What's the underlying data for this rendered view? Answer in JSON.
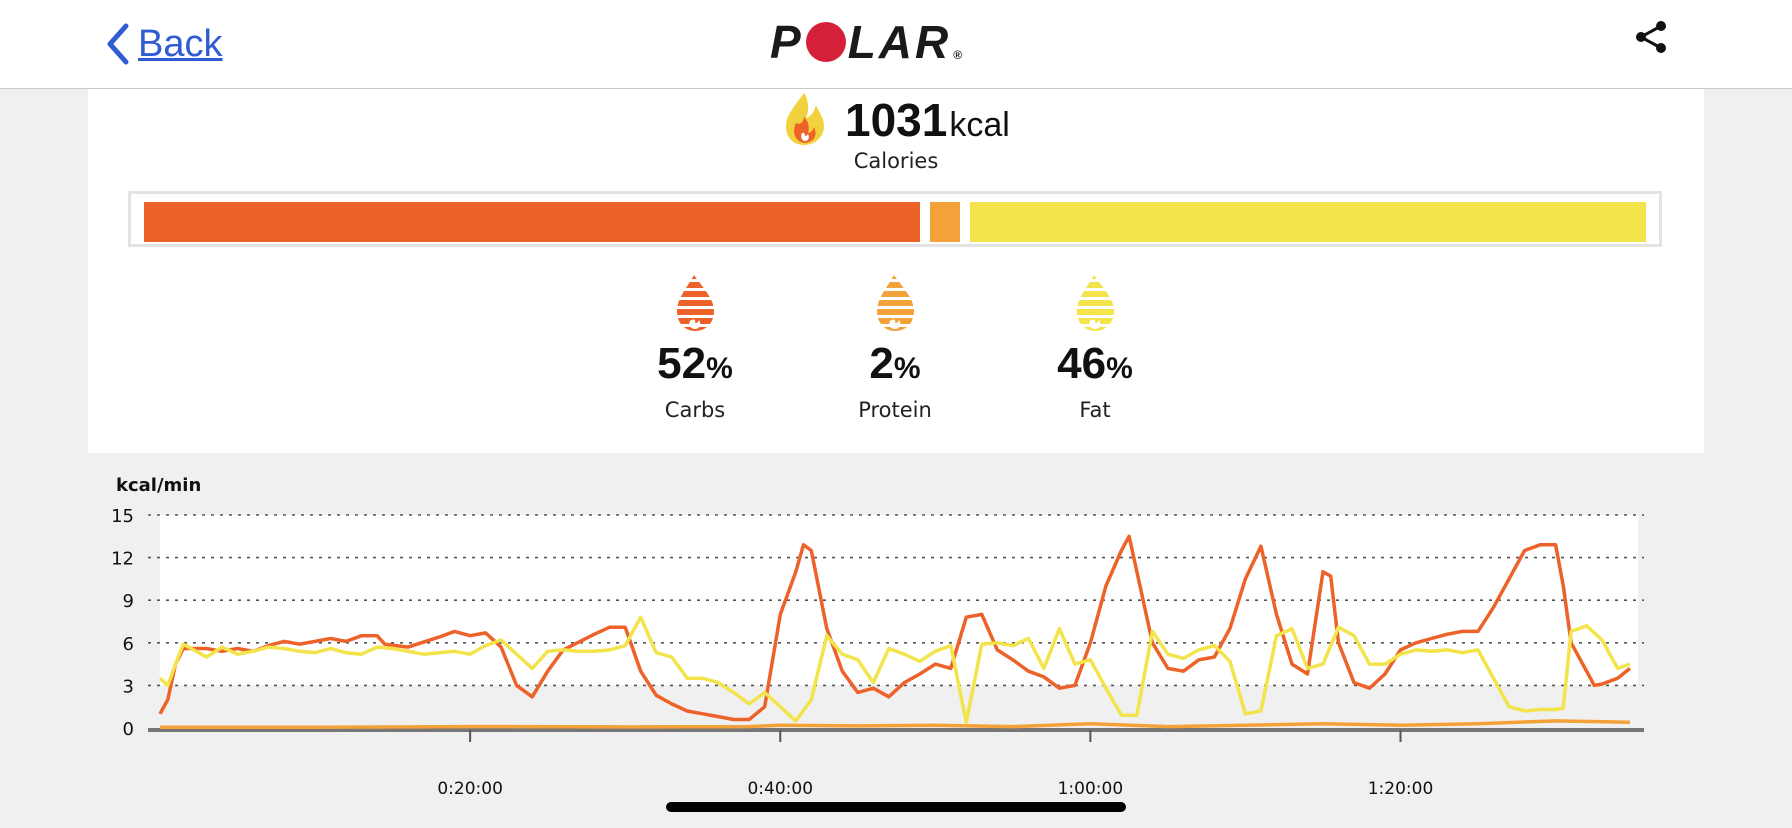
{
  "header": {
    "back_label": "Back",
    "brand": "POLAR",
    "brand_mark": "®",
    "share_icon": "share-icon"
  },
  "calories": {
    "value": "1031",
    "unit": "kcal",
    "label": "Calories"
  },
  "breakdown_bar": {
    "segments": [
      {
        "name": "Carbs",
        "fraction": 0.52,
        "color": "#ed6229"
      },
      {
        "name": "Protein",
        "fraction": 0.02,
        "color": "#f3a23a"
      },
      {
        "name": "Fat",
        "fraction": 0.46,
        "color": "#f2e44a"
      }
    ]
  },
  "macros": [
    {
      "percent": "52",
      "symbol": "%",
      "label": "Carbs",
      "color": "#ed6229"
    },
    {
      "percent": "2",
      "symbol": "%",
      "label": "Protein",
      "color": "#f3a23a"
    },
    {
      "percent": "46",
      "symbol": "%",
      "label": "Fat",
      "color": "#f2e44a"
    }
  ],
  "chart_data": {
    "type": "line",
    "ylabel": "kcal/min",
    "ylim": [
      0,
      15
    ],
    "yticks": [
      "15",
      "12",
      "9",
      "6",
      "3",
      "0"
    ],
    "xticks": [
      {
        "label": "0:20:00",
        "minutes": 20
      },
      {
        "label": "0:40:00",
        "minutes": 40
      },
      {
        "label": "1:00:00",
        "minutes": 60
      },
      {
        "label": "1:20:00",
        "minutes": 80
      }
    ],
    "x_unit": "minutes",
    "xlim": [
      0,
      94.8
    ],
    "grid": "dotted horizontal",
    "series": [
      {
        "color": "#ed6229",
        "points": [
          [
            0,
            1
          ],
          [
            0.5,
            2
          ],
          [
            1,
            4.5
          ],
          [
            1.5,
            5.6
          ],
          [
            3,
            5.6
          ],
          [
            4,
            5.4
          ],
          [
            5,
            5.6
          ],
          [
            6,
            5.4
          ],
          [
            7,
            5.8
          ],
          [
            8,
            6.1
          ],
          [
            9,
            5.9
          ],
          [
            10,
            6.1
          ],
          [
            11,
            6.3
          ],
          [
            12,
            6.1
          ],
          [
            13,
            6.5
          ],
          [
            14,
            6.5
          ],
          [
            14.5,
            5.9
          ],
          [
            16,
            5.7
          ],
          [
            18,
            6.4
          ],
          [
            19,
            6.8
          ],
          [
            20,
            6.5
          ],
          [
            21,
            6.7
          ],
          [
            22,
            5.7
          ],
          [
            23,
            3
          ],
          [
            24,
            2.2
          ],
          [
            25,
            4
          ],
          [
            26,
            5.5
          ],
          [
            28,
            6.6
          ],
          [
            29,
            7.1
          ],
          [
            30,
            7.1
          ],
          [
            31,
            4
          ],
          [
            32,
            2.3
          ],
          [
            33,
            1.7
          ],
          [
            34,
            1.2
          ],
          [
            35,
            1
          ],
          [
            36,
            0.8
          ],
          [
            37,
            0.6
          ],
          [
            38,
            0.6
          ],
          [
            39,
            1.5
          ],
          [
            40,
            8
          ],
          [
            41,
            11
          ],
          [
            41.5,
            12.9
          ],
          [
            42,
            12.5
          ],
          [
            43,
            7
          ],
          [
            44,
            4
          ],
          [
            45,
            2.5
          ],
          [
            46,
            2.8
          ],
          [
            47,
            2.2
          ],
          [
            48,
            3.2
          ],
          [
            49,
            3.8
          ],
          [
            50,
            4.5
          ],
          [
            51,
            4.2
          ],
          [
            52,
            7.8
          ],
          [
            53,
            8
          ],
          [
            54,
            5.5
          ],
          [
            55,
            4.8
          ],
          [
            56,
            4
          ],
          [
            57,
            3.6
          ],
          [
            58,
            2.8
          ],
          [
            59,
            3
          ],
          [
            60,
            6
          ],
          [
            61,
            10
          ],
          [
            62,
            12.5
          ],
          [
            62.5,
            13.5
          ],
          [
            63,
            11
          ],
          [
            64,
            6
          ],
          [
            65,
            4.2
          ],
          [
            66,
            4
          ],
          [
            67,
            4.8
          ],
          [
            68,
            5
          ],
          [
            69,
            7
          ],
          [
            70,
            10.5
          ],
          [
            71,
            12.8
          ],
          [
            72,
            8
          ],
          [
            73,
            4.5
          ],
          [
            74,
            3.8
          ],
          [
            75,
            11
          ],
          [
            75.5,
            10.7
          ],
          [
            76,
            6
          ],
          [
            77,
            3.2
          ],
          [
            78,
            2.8
          ],
          [
            79,
            3.8
          ],
          [
            80,
            5.5
          ],
          [
            81,
            6
          ],
          [
            82,
            6.3
          ],
          [
            83,
            6.6
          ],
          [
            84,
            6.8
          ],
          [
            85,
            6.8
          ],
          [
            86,
            8.5
          ],
          [
            87,
            10.5
          ],
          [
            88,
            12.5
          ],
          [
            89,
            12.9
          ],
          [
            90,
            12.9
          ],
          [
            90.5,
            10
          ],
          [
            91,
            6
          ],
          [
            92,
            4
          ],
          [
            92.5,
            3
          ],
          [
            93,
            3.1
          ],
          [
            94,
            3.5
          ],
          [
            94.8,
            4.2
          ]
        ]
      },
      {
        "color": "#f2e44a",
        "points": [
          [
            0,
            3.5
          ],
          [
            0.5,
            3
          ],
          [
            1,
            4.5
          ],
          [
            1.5,
            5.9
          ],
          [
            3,
            5
          ],
          [
            4,
            5.7
          ],
          [
            5,
            5.2
          ],
          [
            6,
            5.4
          ],
          [
            7,
            5.7
          ],
          [
            8,
            5.6
          ],
          [
            9,
            5.4
          ],
          [
            10,
            5.3
          ],
          [
            11,
            5.6
          ],
          [
            12,
            5.3
          ],
          [
            13,
            5.2
          ],
          [
            14,
            5.7
          ],
          [
            15,
            5.6
          ],
          [
            16,
            5.4
          ],
          [
            17,
            5.2
          ],
          [
            18,
            5.3
          ],
          [
            19,
            5.4
          ],
          [
            20,
            5.2
          ],
          [
            21,
            5.8
          ],
          [
            22,
            6.2
          ],
          [
            23,
            5.2
          ],
          [
            24,
            4.2
          ],
          [
            25,
            5.4
          ],
          [
            26,
            5.5
          ],
          [
            27,
            5.4
          ],
          [
            28,
            5.4
          ],
          [
            29,
            5.5
          ],
          [
            30,
            5.8
          ],
          [
            31,
            7.8
          ],
          [
            32,
            5.3
          ],
          [
            33,
            5
          ],
          [
            34,
            3.5
          ],
          [
            35,
            3.5
          ],
          [
            36,
            3.2
          ],
          [
            37,
            2.5
          ],
          [
            38,
            1.7
          ],
          [
            39,
            2.5
          ],
          [
            40,
            1.5
          ],
          [
            41,
            0.5
          ],
          [
            42,
            2
          ],
          [
            43,
            6.5
          ],
          [
            44,
            5.2
          ],
          [
            45,
            4.8
          ],
          [
            46,
            3.2
          ],
          [
            47,
            5.6
          ],
          [
            48,
            5.2
          ],
          [
            49,
            4.7
          ],
          [
            50,
            5.4
          ],
          [
            51,
            5.8
          ],
          [
            52,
            0.4
          ],
          [
            53,
            5.9
          ],
          [
            54,
            6
          ],
          [
            55,
            5.8
          ],
          [
            56,
            6.3
          ],
          [
            57,
            4.2
          ],
          [
            58,
            7
          ],
          [
            59,
            4.5
          ],
          [
            60,
            4.8
          ],
          [
            61,
            2.8
          ],
          [
            62,
            0.9
          ],
          [
            63,
            0.9
          ],
          [
            64,
            6.8
          ],
          [
            65,
            5.2
          ],
          [
            66,
            4.9
          ],
          [
            67,
            5.5
          ],
          [
            68,
            5.8
          ],
          [
            69,
            4.7
          ],
          [
            70,
            1
          ],
          [
            71,
            1.2
          ],
          [
            72,
            6.5
          ],
          [
            73,
            7
          ],
          [
            74,
            4.2
          ],
          [
            75,
            4.5
          ],
          [
            76,
            7.1
          ],
          [
            77,
            6.5
          ],
          [
            78,
            4.5
          ],
          [
            79,
            4.5
          ],
          [
            80,
            5.2
          ],
          [
            81,
            5.5
          ],
          [
            82,
            5.4
          ],
          [
            83,
            5.5
          ],
          [
            84,
            5.3
          ],
          [
            85,
            5.5
          ],
          [
            86,
            3.5
          ],
          [
            87,
            1.5
          ],
          [
            88,
            1.2
          ],
          [
            89,
            1.3
          ],
          [
            90,
            1.3
          ],
          [
            90.5,
            1.4
          ],
          [
            91,
            6.8
          ],
          [
            92,
            7.2
          ],
          [
            93,
            6.2
          ],
          [
            94,
            4.2
          ],
          [
            94.8,
            4.5
          ]
        ]
      },
      {
        "color": "#f3a23a",
        "points": [
          [
            0,
            0.05
          ],
          [
            10,
            0.05
          ],
          [
            20,
            0.1
          ],
          [
            30,
            0.08
          ],
          [
            38,
            0.1
          ],
          [
            40,
            0.2
          ],
          [
            45,
            0.15
          ],
          [
            50,
            0.2
          ],
          [
            55,
            0.1
          ],
          [
            60,
            0.3
          ],
          [
            65,
            0.1
          ],
          [
            70,
            0.2
          ],
          [
            75,
            0.3
          ],
          [
            80,
            0.2
          ],
          [
            85,
            0.3
          ],
          [
            90,
            0.5
          ],
          [
            94.8,
            0.4
          ]
        ]
      }
    ]
  }
}
